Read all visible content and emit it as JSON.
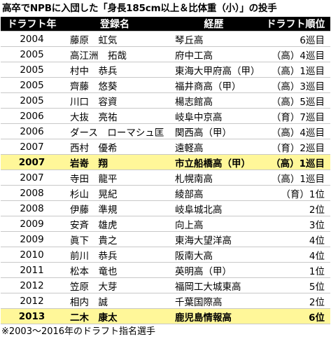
{
  "title": "高卒でNPBに入団した「身長185cm以上＆比体重（小）」の投手",
  "columns": [
    "ドラフト年",
    "登録名",
    "経歴",
    "ドラフト順位"
  ],
  "rows": [
    {
      "year": "2004",
      "name": "藤原　虹気",
      "school": "琴丘高",
      "order": "6巡目",
      "hl": false
    },
    {
      "year": "2005",
      "name": "高江洲　拓哉",
      "school": "府中工高",
      "order": "（高）4巡目",
      "hl": false
    },
    {
      "year": "2005",
      "name": "村中　恭兵",
      "school": "東海大甲府高（甲）",
      "order": "（高）1巡目",
      "hl": false
    },
    {
      "year": "2005",
      "name": "齊藤　悠葵",
      "school": "福井商高（甲）",
      "order": "（高）3巡目",
      "hl": false
    },
    {
      "year": "2005",
      "name": "川口　容資",
      "school": "楊志館高",
      "order": "（高）5巡目",
      "hl": false
    },
    {
      "year": "2006",
      "name": "大抜　亮祐",
      "school": "岐阜中京高",
      "order": "（育）7巡目",
      "hl": false
    },
    {
      "year": "2006",
      "name": "ダース　ローマシュ匡",
      "school": "関西高（甲）",
      "order": "（高）4巡目",
      "hl": false
    },
    {
      "year": "2007",
      "name": "西村　優希",
      "school": "遠軽高",
      "order": "（育）2巡目",
      "hl": false
    },
    {
      "year": "2007",
      "name": "岩嵜　翔",
      "school": "市立船橋高（甲）",
      "order": "（高）1巡目",
      "hl": true
    },
    {
      "year": "2007",
      "name": "寺田　龍平",
      "school": "札幌南高",
      "order": "（高）1巡目",
      "hl": false
    },
    {
      "year": "2008",
      "name": "杉山　晃紀",
      "school": "綾部高",
      "order": "（育）1位",
      "hl": false
    },
    {
      "year": "2008",
      "name": "伊藤　準規",
      "school": "岐阜城北高",
      "order": "2位",
      "hl": false
    },
    {
      "year": "2009",
      "name": "安斉　雄虎",
      "school": "向上高",
      "order": "3位",
      "hl": false
    },
    {
      "year": "2009",
      "name": "眞下　貴之",
      "school": "東海大望洋高",
      "order": "4位",
      "hl": false
    },
    {
      "year": "2010",
      "name": "前川　恭兵",
      "school": "阪南大高",
      "order": "4位",
      "hl": false
    },
    {
      "year": "2011",
      "name": "松本　竜也",
      "school": "英明高（甲）",
      "order": "1位",
      "hl": false
    },
    {
      "year": "2012",
      "name": "笠原　大芽",
      "school": "福岡工大城東高",
      "order": "5位",
      "hl": false
    },
    {
      "year": "2012",
      "name": "相内　誠",
      "school": "千葉国際高",
      "order": "2位",
      "hl": false
    },
    {
      "year": "2013",
      "name": "二木　康太",
      "school": "鹿児島情報高",
      "order": "6位",
      "hl": true
    }
  ],
  "note": "※2003～2016年のドラフト指名選手",
  "colors": {
    "header_bg": "#000000",
    "header_text": "#ffffff",
    "highlight": "#fff799"
  }
}
